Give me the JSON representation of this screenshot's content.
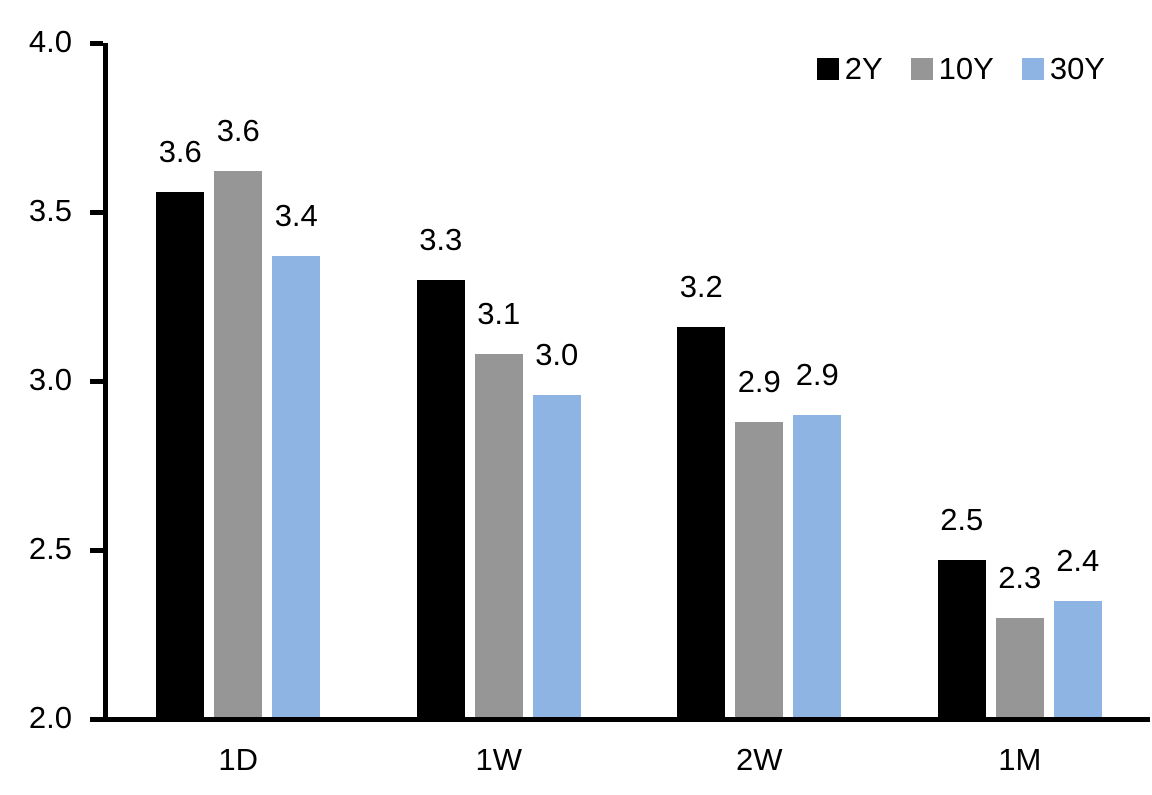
{
  "chart_data": {
    "type": "bar",
    "title": "",
    "categories": [
      "1D",
      "1W",
      "2W",
      "1M"
    ],
    "series": [
      {
        "name": "2Y",
        "color": "#000000",
        "values": [
          3.56,
          3.3,
          3.16,
          2.47
        ],
        "data_labels": [
          "3.6",
          "3.3",
          "3.2",
          "2.5"
        ]
      },
      {
        "name": "10Y",
        "color": "#969696",
        "values": [
          3.62,
          3.08,
          2.88,
          2.3
        ],
        "data_labels": [
          "3.6",
          "3.1",
          "2.9",
          "2.3"
        ]
      },
      {
        "name": "30Y",
        "color": "#8EB4E3",
        "values": [
          3.37,
          2.96,
          2.9,
          2.35
        ],
        "data_labels": [
          "3.4",
          "3.0",
          "2.9",
          "2.4"
        ]
      }
    ],
    "y_axis": {
      "min": 2.0,
      "max": 4.0,
      "tick_step": 0.5,
      "tick_labels": [
        "2.0",
        "2.5",
        "3.0",
        "3.5",
        "4.0"
      ]
    },
    "x_axis": {
      "labels": [
        "1D",
        "1W",
        "2W",
        "1M"
      ]
    },
    "legend": {
      "position": "top-right",
      "entries": [
        "2Y",
        "10Y",
        "30Y"
      ]
    },
    "grid": false,
    "background_color": "#FFFFFF",
    "axis_color": "#000000",
    "text_color": "#000000"
  }
}
